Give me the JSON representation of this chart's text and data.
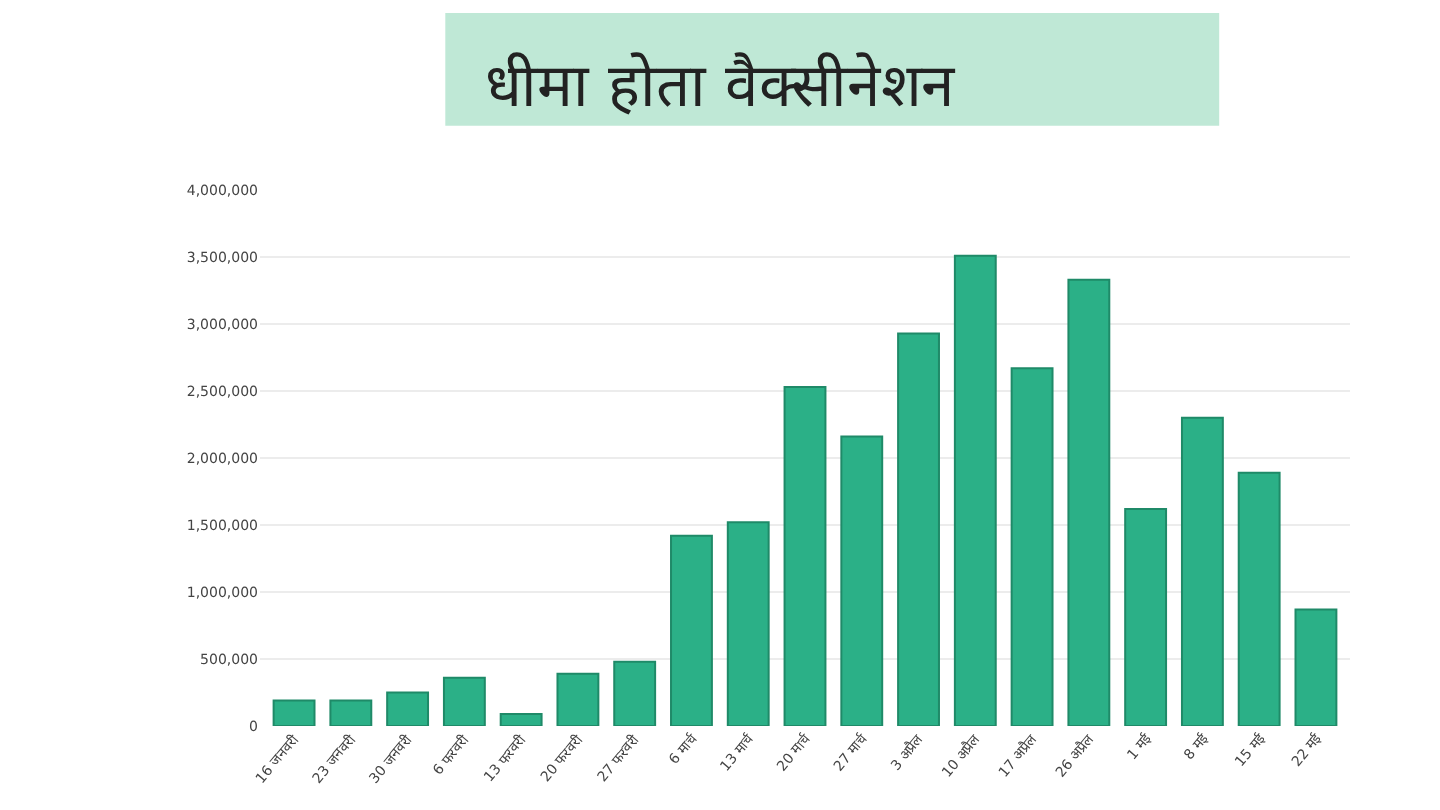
{
  "chart_data": {
    "type": "bar",
    "title": "धीमा होता वैक्सीनेशन",
    "categories": [
      "16 जनवरी",
      "23 जनवरी",
      "30 जनवरी",
      "6 फरवरी",
      "13 फरवरी",
      "20 फरवरी",
      "27 फरवरी",
      "6 मार्च",
      "13 मार्च",
      "20 मार्च",
      "27 मार्च",
      "3 अप्रैल",
      "10 अप्रैल",
      "17 अप्रैल",
      "26 अप्रैल",
      "1 मई",
      "8 मई",
      "15 मई",
      "22 मई"
    ],
    "values": [
      190000,
      190000,
      250000,
      360000,
      90000,
      390000,
      480000,
      1420000,
      1520000,
      2530000,
      2160000,
      2930000,
      3510000,
      2670000,
      3330000,
      1620000,
      2300000,
      1890000,
      870000
    ],
    "color": "#2bb087",
    "ylim": [
      0,
      4000000
    ],
    "yticks": [
      {
        "value": 0,
        "label": "0"
      },
      {
        "value": 500000,
        "label": "500,000"
      },
      {
        "value": 1000000,
        "label": "1,000,000"
      },
      {
        "value": 1500000,
        "label": "1,500,000"
      },
      {
        "value": 2000000,
        "label": "2,000,000"
      },
      {
        "value": 2500000,
        "label": "2,500,000"
      },
      {
        "value": 3000000,
        "label": "3,000,000"
      },
      {
        "value": 3500000,
        "label": "3,500,000"
      },
      {
        "value": 4000000,
        "label": "4,000,000"
      }
    ],
    "grid": "y"
  }
}
